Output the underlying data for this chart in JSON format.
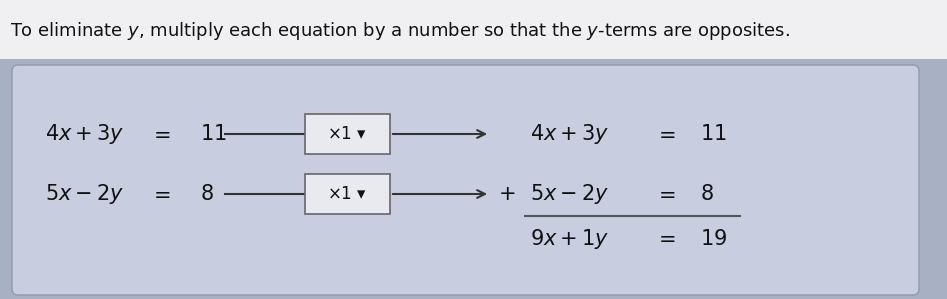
{
  "title": "To eliminate $y$, multiply each equation by a number so that the $y$-terms are opposites.",
  "title_fontsize": 13.0,
  "title_bg": "#f0f0f0",
  "panel_color": "#c8cedf",
  "outer_bg": "#a8b0c4",
  "arrow_color": "#333333",
  "box_border_color": "#666666",
  "box_fill": "#e8eaf0",
  "text_color": "#111111",
  "line_color": "#555555",
  "eq1_left_expr": "$4x + 3y$",
  "eq1_left_eq": "$=$",
  "eq1_left_val": "$11$",
  "eq2_left_expr": "$5x - 2y$",
  "eq2_left_eq": "$=$",
  "eq2_left_val": "$8$",
  "box_text": "$\\times$1",
  "eq1_right_expr": "$4x + 3y$",
  "eq1_right_eq": "$=$",
  "eq1_right_val": "$11$",
  "eq2_plus": "$+$",
  "eq2_right_expr": "$5x - 2y$",
  "eq2_right_eq": "$=$",
  "eq2_right_val": "$8$",
  "eq3_expr": "$9x + 1y$",
  "eq3_eq": "$=$",
  "eq3_val": "$19$"
}
